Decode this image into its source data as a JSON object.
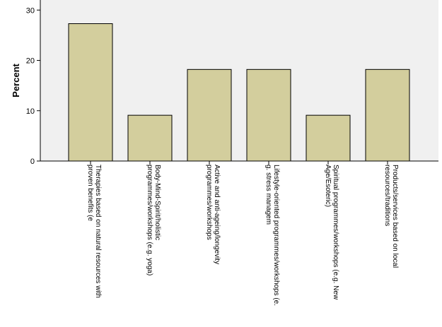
{
  "chart_data": {
    "type": "bar",
    "title": "",
    "xlabel": "",
    "ylabel": "Percent",
    "ylim": [
      0,
      32
    ],
    "yticks": [
      0,
      10,
      20,
      30
    ],
    "grid": false,
    "categories": [
      [
        "Therapies based on natural resources with",
        "proven benefits (e"
      ],
      [
        "Body-Mind-Spirit/holistic",
        "programmes/workshops (e.g. yoga)"
      ],
      [
        "Active and anti-ageing/longevity",
        "programmes/workshops"
      ],
      [
        "Lifestyle-oriented programmes/workshops (e.",
        "g. stress managem"
      ],
      [
        "Spiritual programmes/workshops (e.g. New",
        "Age/Esoteric)"
      ],
      [
        "Products/services based on local",
        "resources/traditions"
      ]
    ],
    "values": [
      27.3,
      9.1,
      18.2,
      18.2,
      9.1,
      18.2
    ],
    "colors": {
      "bar_fill": "#d3ce9d",
      "bar_stroke": "#000000",
      "plot_background": "#f0f0f0"
    }
  }
}
